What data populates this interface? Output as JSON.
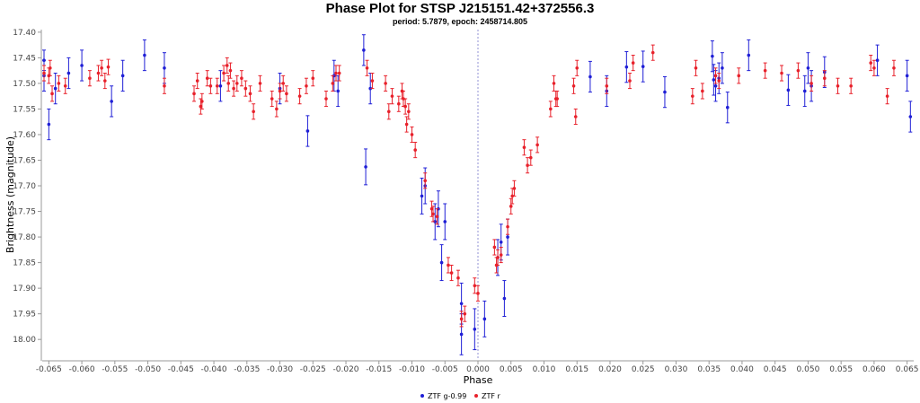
{
  "chart_data": {
    "type": "scatter",
    "title": "Phase Plot for STSP J215151.42+372556.3",
    "subtitle": "period: 5.7879, epoch: 2458714.805",
    "xlabel": "Phase",
    "ylabel": "Brightness (magnitude)",
    "xlim": [
      -0.066,
      0.066
    ],
    "ylim": [
      17.395,
      18.04
    ],
    "y_inverted": true,
    "grid": false,
    "reference_line_x": 0.0,
    "legend_position": "bottom-center",
    "x_ticks": [
      "-0.065",
      "-0.060",
      "-0.055",
      "-0.050",
      "-0.045",
      "-0.040",
      "-0.035",
      "-0.030",
      "-0.025",
      "-0.020",
      "-0.015",
      "-0.010",
      "-0.005",
      "0.000",
      "0.005",
      "0.010",
      "0.015",
      "0.020",
      "0.025",
      "0.030",
      "0.035",
      "0.040",
      "0.045",
      "0.050",
      "0.055",
      "0.060",
      "0.065"
    ],
    "y_ticks": [
      "17.40",
      "17.45",
      "17.50",
      "17.55",
      "17.60",
      "17.65",
      "17.70",
      "17.75",
      "17.80",
      "17.85",
      "17.90",
      "17.95",
      "18.00"
    ],
    "series": [
      {
        "name": "ZTF g-0.99",
        "color": "#1f1fd6",
        "points": [
          [
            -0.066,
            17.455,
            0.02
          ],
          [
            -0.066,
            17.485,
            0.03
          ],
          [
            -0.065,
            17.58,
            0.03
          ],
          [
            -0.064,
            17.51,
            0.03
          ],
          [
            -0.062,
            17.48,
            0.03
          ],
          [
            -0.06,
            17.465,
            0.03
          ],
          [
            -0.0555,
            17.535,
            0.03
          ],
          [
            -0.0538,
            17.485,
            0.03
          ],
          [
            -0.0505,
            17.445,
            0.03
          ],
          [
            -0.0475,
            17.47,
            0.03
          ],
          [
            -0.039,
            17.505,
            0.03
          ],
          [
            -0.03,
            17.51,
            0.03
          ],
          [
            -0.0258,
            17.593,
            0.03
          ],
          [
            -0.0218,
            17.485,
            0.03
          ],
          [
            -0.0212,
            17.515,
            0.03
          ],
          [
            -0.0173,
            17.435,
            0.03
          ],
          [
            -0.017,
            17.663,
            0.035
          ],
          [
            -0.0163,
            17.51,
            0.03
          ],
          [
            -0.0085,
            17.72,
            0.035
          ],
          [
            -0.008,
            17.7,
            0.035
          ],
          [
            -0.0065,
            17.77,
            0.035
          ],
          [
            -0.006,
            17.745,
            0.035
          ],
          [
            -0.0055,
            17.85,
            0.035
          ],
          [
            -0.005,
            17.77,
            0.035
          ],
          [
            -0.0025,
            17.93,
            0.04
          ],
          [
            -0.0025,
            17.99,
            0.04
          ],
          [
            -0.0005,
            17.98,
            0.04
          ],
          [
            0.001,
            17.96,
            0.035
          ],
          [
            0.003,
            17.84,
            0.035
          ],
          [
            0.0035,
            17.81,
            0.035
          ],
          [
            0.004,
            17.92,
            0.035
          ],
          [
            0.0045,
            17.8,
            0.035
          ],
          [
            0.017,
            17.487,
            0.03
          ],
          [
            0.0195,
            17.515,
            0.03
          ],
          [
            0.0225,
            17.468,
            0.03
          ],
          [
            0.025,
            17.467,
            0.03
          ],
          [
            0.0283,
            17.517,
            0.03
          ],
          [
            0.0355,
            17.447,
            0.03
          ],
          [
            0.0357,
            17.493,
            0.03
          ],
          [
            0.036,
            17.505,
            0.03
          ],
          [
            0.0365,
            17.49,
            0.03
          ],
          [
            0.037,
            17.47,
            0.03
          ],
          [
            0.0378,
            17.547,
            0.03
          ],
          [
            0.041,
            17.445,
            0.03
          ],
          [
            0.047,
            17.513,
            0.03
          ],
          [
            0.0495,
            17.515,
            0.03
          ],
          [
            0.05,
            17.47,
            0.03
          ],
          [
            0.0505,
            17.505,
            0.03
          ],
          [
            0.0525,
            17.478,
            0.03
          ],
          [
            0.0605,
            17.455,
            0.03
          ],
          [
            0.065,
            17.485,
            0.03
          ],
          [
            0.0655,
            17.565,
            0.03
          ]
        ]
      },
      {
        "name": "ZTF r",
        "color": "#e8212b",
        "points": [
          [
            -0.066,
            17.48,
            0.015
          ],
          [
            -0.065,
            17.485,
            0.015
          ],
          [
            -0.0648,
            17.47,
            0.015
          ],
          [
            -0.0645,
            17.52,
            0.015
          ],
          [
            -0.0635,
            17.5,
            0.015
          ],
          [
            -0.0625,
            17.505,
            0.015
          ],
          [
            -0.0588,
            17.49,
            0.015
          ],
          [
            -0.0575,
            17.48,
            0.015
          ],
          [
            -0.057,
            17.47,
            0.015
          ],
          [
            -0.0565,
            17.495,
            0.015
          ],
          [
            -0.056,
            17.468,
            0.015
          ],
          [
            -0.0475,
            17.505,
            0.015
          ],
          [
            -0.043,
            17.52,
            0.015
          ],
          [
            -0.0425,
            17.495,
            0.015
          ],
          [
            -0.042,
            17.545,
            0.015
          ],
          [
            -0.0418,
            17.535,
            0.015
          ],
          [
            -0.041,
            17.49,
            0.015
          ],
          [
            -0.0405,
            17.505,
            0.015
          ],
          [
            -0.0395,
            17.505,
            0.015
          ],
          [
            -0.0385,
            17.48,
            0.015
          ],
          [
            -0.038,
            17.465,
            0.015
          ],
          [
            -0.0378,
            17.5,
            0.015
          ],
          [
            -0.0375,
            17.475,
            0.015
          ],
          [
            -0.037,
            17.51,
            0.015
          ],
          [
            -0.0365,
            17.5,
            0.015
          ],
          [
            -0.0358,
            17.49,
            0.015
          ],
          [
            -0.0352,
            17.51,
            0.015
          ],
          [
            -0.0345,
            17.52,
            0.015
          ],
          [
            -0.034,
            17.555,
            0.015
          ],
          [
            -0.033,
            17.5,
            0.015
          ],
          [
            -0.0312,
            17.53,
            0.015
          ],
          [
            -0.0305,
            17.55,
            0.015
          ],
          [
            -0.03,
            17.515,
            0.015
          ],
          [
            -0.0295,
            17.5,
            0.015
          ],
          [
            -0.029,
            17.52,
            0.015
          ],
          [
            -0.027,
            17.525,
            0.015
          ],
          [
            -0.026,
            17.505,
            0.015
          ],
          [
            -0.025,
            17.49,
            0.015
          ],
          [
            -0.023,
            17.53,
            0.015
          ],
          [
            -0.022,
            17.5,
            0.015
          ],
          [
            -0.0215,
            17.48,
            0.015
          ],
          [
            -0.021,
            17.48,
            0.015
          ],
          [
            -0.0168,
            17.47,
            0.015
          ],
          [
            -0.016,
            17.495,
            0.015
          ],
          [
            -0.014,
            17.5,
            0.015
          ],
          [
            -0.0135,
            17.555,
            0.015
          ],
          [
            -0.013,
            17.525,
            0.015
          ],
          [
            -0.012,
            17.54,
            0.015
          ],
          [
            -0.0115,
            17.515,
            0.015
          ],
          [
            -0.0113,
            17.53,
            0.015
          ],
          [
            -0.011,
            17.545,
            0.015
          ],
          [
            -0.0108,
            17.58,
            0.015
          ],
          [
            -0.0105,
            17.555,
            0.015
          ],
          [
            -0.01,
            17.6,
            0.015
          ],
          [
            -0.0095,
            17.63,
            0.015
          ],
          [
            -0.008,
            17.69,
            0.015
          ],
          [
            -0.007,
            17.745,
            0.015
          ],
          [
            -0.0068,
            17.755,
            0.015
          ],
          [
            -0.0062,
            17.76,
            0.015
          ],
          [
            -0.0045,
            17.855,
            0.015
          ],
          [
            -0.004,
            17.87,
            0.015
          ],
          [
            -0.003,
            17.88,
            0.015
          ],
          [
            -0.0025,
            17.96,
            0.015
          ],
          [
            -0.002,
            17.95,
            0.015
          ],
          [
            -0.0005,
            17.895,
            0.015
          ],
          [
            0.0,
            17.91,
            0.015
          ],
          [
            0.0025,
            17.82,
            0.015
          ],
          [
            0.0028,
            17.855,
            0.015
          ],
          [
            0.003,
            17.84,
            0.015
          ],
          [
            0.0035,
            17.835,
            0.015
          ],
          [
            0.0045,
            17.78,
            0.015
          ],
          [
            0.005,
            17.74,
            0.015
          ],
          [
            0.0052,
            17.72,
            0.015
          ],
          [
            0.0055,
            17.705,
            0.015
          ],
          [
            0.007,
            17.625,
            0.015
          ],
          [
            0.0075,
            17.66,
            0.015
          ],
          [
            0.008,
            17.645,
            0.015
          ],
          [
            0.009,
            17.62,
            0.015
          ],
          [
            0.011,
            17.55,
            0.015
          ],
          [
            0.0115,
            17.5,
            0.015
          ],
          [
            0.0118,
            17.53,
            0.015
          ],
          [
            0.012,
            17.53,
            0.015
          ],
          [
            0.0145,
            17.505,
            0.015
          ],
          [
            0.0148,
            17.565,
            0.015
          ],
          [
            0.015,
            17.47,
            0.015
          ],
          [
            0.0195,
            17.505,
            0.015
          ],
          [
            0.023,
            17.495,
            0.015
          ],
          [
            0.0235,
            17.46,
            0.015
          ],
          [
            0.0265,
            17.44,
            0.015
          ],
          [
            0.0325,
            17.525,
            0.015
          ],
          [
            0.033,
            17.47,
            0.015
          ],
          [
            0.034,
            17.515,
            0.015
          ],
          [
            0.036,
            17.485,
            0.015
          ],
          [
            0.0365,
            17.495,
            0.015
          ],
          [
            0.0395,
            17.485,
            0.015
          ],
          [
            0.0435,
            17.475,
            0.015
          ],
          [
            0.046,
            17.48,
            0.015
          ],
          [
            0.0485,
            17.475,
            0.015
          ],
          [
            0.0505,
            17.5,
            0.015
          ],
          [
            0.0525,
            17.49,
            0.015
          ],
          [
            0.0545,
            17.505,
            0.015
          ],
          [
            0.0565,
            17.505,
            0.015
          ],
          [
            0.0595,
            17.46,
            0.015
          ],
          [
            0.06,
            17.47,
            0.015
          ],
          [
            0.062,
            17.525,
            0.015
          ],
          [
            0.063,
            17.47,
            0.015
          ]
        ]
      }
    ]
  }
}
